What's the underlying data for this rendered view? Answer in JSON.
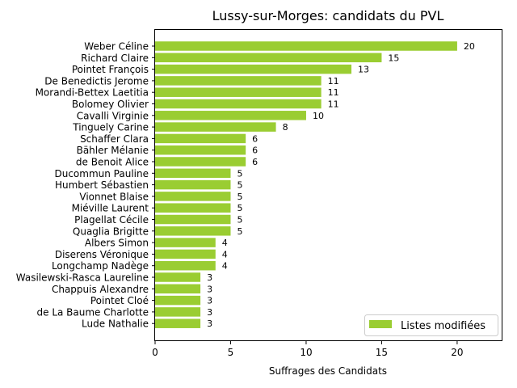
{
  "chart_data": {
    "type": "bar",
    "orientation": "horizontal",
    "title": "Lussy-sur-Morges: candidats du PVL",
    "xlabel": "Suffrages des Candidats",
    "ylabel": "",
    "xlim": [
      0,
      23
    ],
    "xticks": [
      0,
      5,
      10,
      15,
      20
    ],
    "grid": false,
    "legend_position": "lower-right",
    "bar_color": "#9acd32",
    "categories": [
      "Weber Céline",
      "Richard Claire",
      "Pointet François",
      "De Benedictis Jerome",
      "Morandi-Bettex Laetitia",
      "Bolomey Olivier",
      "Cavalli Virginie",
      "Tinguely Carine",
      "Schaffer Clara",
      "Bähler Mélanie",
      "de Benoit Alice",
      "Ducommun Pauline",
      "Humbert Sébastien",
      "Vionnet Blaise",
      "Miéville Laurent",
      "Plagellat Cécile",
      "Quaglia Brigitte",
      "Albers Simon",
      "Diserens Véronique",
      "Longchamp Nadège",
      "Wasilewski-Rasca Laureline",
      "Chappuis Alexandre",
      "Pointet Cloé",
      "de La Baume Charlotte",
      "Lude Nathalie"
    ],
    "series": [
      {
        "name": "Listes modifiées",
        "values": [
          20,
          15,
          13,
          11,
          11,
          11,
          10,
          8,
          6,
          6,
          6,
          5,
          5,
          5,
          5,
          5,
          5,
          4,
          4,
          4,
          3,
          3,
          3,
          3,
          3
        ]
      }
    ]
  }
}
